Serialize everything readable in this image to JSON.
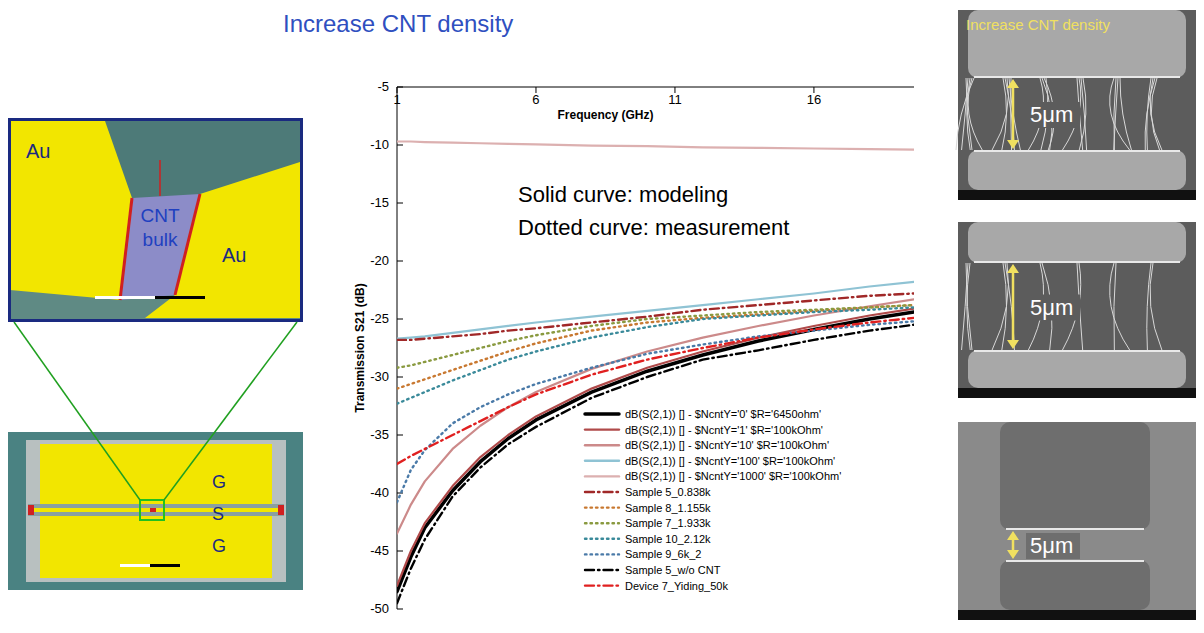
{
  "title": "Increase CNT density",
  "diagram": {
    "model_labels": [
      "Au",
      "CNT bulk",
      "Au"
    ],
    "layout_labels": [
      "G",
      "S",
      "G"
    ]
  },
  "sem": {
    "label": "Increase CNT density",
    "scale_labels": [
      "5μm",
      "5μm",
      "5μm"
    ]
  },
  "chart_data": {
    "type": "line",
    "xlabel": "Frequency (GHz)",
    "ylabel": "Transmission S21 (dB)",
    "annotations": [
      "Solid curve: modeling",
      "Dotted curve: measurement"
    ],
    "xlim": [
      1,
      19.6
    ],
    "xticks": [
      1,
      6,
      11,
      16
    ],
    "ylim": [
      -50,
      -5
    ],
    "yticks": [
      -50,
      -45,
      -40,
      -35,
      -30,
      -25,
      -20,
      -15,
      -10,
      -5
    ],
    "grid": false,
    "legend": "lower right",
    "x": [
      1,
      1.5,
      2,
      3,
      4,
      5,
      6,
      8,
      10,
      12,
      14,
      16,
      18,
      19.6
    ],
    "series": [
      {
        "name": "dB(S(2,1)) [] - $NcntY='0' $R='6450ohm'",
        "color": "#000000",
        "line_style": "solid",
        "values": [
          -48.5,
          -45.5,
          -43,
          -39.8,
          -37.3,
          -35.3,
          -33.7,
          -31.3,
          -29.5,
          -28.1,
          -26.9,
          -25.9,
          -25,
          -24.4
        ]
      },
      {
        "name": "dB(S(2,1)) [] - $NcntY='1' $R='100kOhm'",
        "color": "#b04a4a",
        "line_style": "solid",
        "values": [
          -48,
          -45,
          -42.6,
          -39.4,
          -36.9,
          -35,
          -33.4,
          -31,
          -29.2,
          -27.8,
          -26.6,
          -25.6,
          -24.7,
          -24.1
        ]
      },
      {
        "name": "dB(S(2,1)) [] - $NcntY='10' $R='100kOhm'",
        "color": "#cc8a8a",
        "line_style": "solid",
        "values": [
          -43.5,
          -41,
          -39,
          -36.2,
          -34.2,
          -32.6,
          -31.3,
          -29.3,
          -27.8,
          -26.6,
          -25.6,
          -24.7,
          -23.9,
          -23.3
        ]
      },
      {
        "name": "dB(S(2,1)) [] - $NcntY='100' $R='100kOhm'",
        "color": "#8fc3d4",
        "line_style": "solid",
        "values": [
          -26.7,
          -26.6,
          -26.5,
          -26.2,
          -25.9,
          -25.6,
          -25.3,
          -24.8,
          -24.3,
          -23.8,
          -23.3,
          -22.8,
          -22.2,
          -21.8
        ]
      },
      {
        "name": "dB(S(2,1)) [] - $NcntY='1000' $R='100kOhm'",
        "color": "#dcb0b0",
        "line_style": "solid",
        "values": [
          -9.7,
          -9.7,
          -9.75,
          -9.8,
          -9.85,
          -9.9,
          -9.95,
          -10.05,
          -10.1,
          -10.2,
          -10.25,
          -10.3,
          -10.35,
          -10.4
        ]
      },
      {
        "name": "Sample 5_0.838k",
        "color": "#a02828",
        "line_style": "dashdot",
        "values": [
          -26.8,
          -26.8,
          -26.7,
          -26.5,
          -26.3,
          -26,
          -25.8,
          -25.3,
          -24.8,
          -24.2,
          -23.8,
          -23.4,
          -23,
          -22.8
        ]
      },
      {
        "name": "Sample 8_1.155k",
        "color": "#c87830",
        "line_style": "dotted",
        "values": [
          -31,
          -30.6,
          -30.2,
          -29.4,
          -28.6,
          -27.8,
          -27.1,
          -26,
          -25.3,
          -24.9,
          -24.6,
          -24.3,
          -24,
          -23.8
        ]
      },
      {
        "name": "Sample 7_1.933k",
        "color": "#8a9a40",
        "line_style": "dotted",
        "values": [
          -29.2,
          -29,
          -28.7,
          -28.1,
          -27.5,
          -26.9,
          -26.4,
          -25.6,
          -25,
          -24.7,
          -24.4,
          -24.2,
          -24,
          -23.8
        ]
      },
      {
        "name": "Sample 10_2.12k",
        "color": "#3a8a9a",
        "line_style": "dotted",
        "values": [
          -32.3,
          -31.8,
          -31.3,
          -30.3,
          -29.4,
          -28.5,
          -27.8,
          -26.6,
          -25.7,
          -25,
          -24.7,
          -24.4,
          -24.2,
          -24
        ]
      },
      {
        "name": "Sample 9_6k_2",
        "color": "#4a7aa8",
        "line_style": "dotted",
        "values": [
          -40.8,
          -38,
          -36.3,
          -34,
          -32.6,
          -31.5,
          -30.6,
          -29.2,
          -28,
          -27.2,
          -26.5,
          -26,
          -25.5,
          -25.2
        ]
      },
      {
        "name": "Sample 5_w/o CNT",
        "color": "#000000",
        "line_style": "dashdot",
        "values": [
          -49.5,
          -46.5,
          -44,
          -40.3,
          -37.8,
          -35.8,
          -34.3,
          -31.8,
          -30,
          -28.5,
          -27.7,
          -26.8,
          -26,
          -25.5
        ]
      },
      {
        "name": "Device 7_Yiding_50k",
        "color": "#e02020",
        "line_style": "dashdot",
        "values": [
          -37.5,
          -36.8,
          -36.2,
          -35,
          -33.8,
          -32.6,
          -31.5,
          -29.8,
          -28.5,
          -27.5,
          -26.6,
          -25.9,
          -25.3,
          -24.9
        ]
      }
    ]
  }
}
